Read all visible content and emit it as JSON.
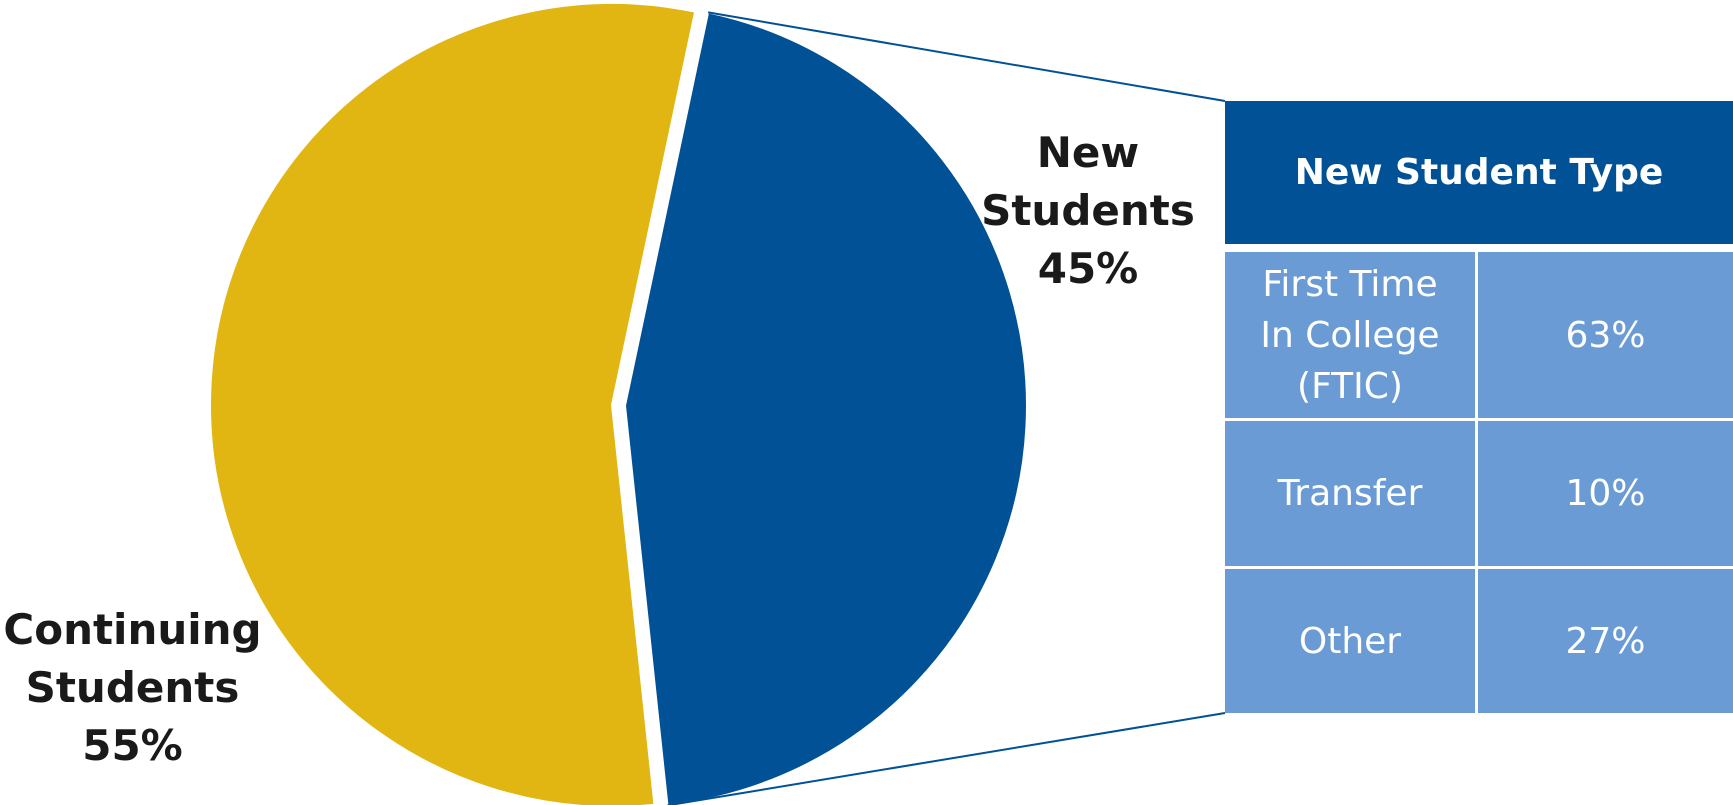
{
  "chart_data": [
    {
      "type": "pie",
      "slices": [
        {
          "label_lines": [
            "New",
            "Students"
          ],
          "value": 45,
          "value_label": "45%",
          "color": "#005195"
        },
        {
          "label_lines": [
            "Continuing",
            "Students"
          ],
          "value": 55,
          "value_label": "55%",
          "color": "#e2b612"
        }
      ],
      "exploded_slice": "New Students"
    },
    {
      "type": "table",
      "title": "New Student Type",
      "rows": [
        {
          "type_lines": [
            "First Time",
            "In College",
            "(FTIC)"
          ],
          "value": 63,
          "value_label": "63%"
        },
        {
          "type_lines": [
            "Transfer"
          ],
          "value": 10,
          "value_label": "10%"
        },
        {
          "type_lines": [
            "Other"
          ],
          "value": 27,
          "value_label": "27%"
        }
      ],
      "header_color": "#005195",
      "cell_color": "#6a9bd4"
    }
  ]
}
